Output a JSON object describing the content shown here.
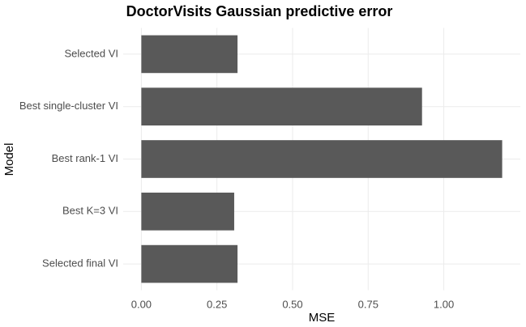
{
  "chart_data": {
    "type": "bar",
    "orientation": "horizontal",
    "title": "DoctorVisits Gaussian predictive error",
    "x_label": "MSE",
    "y_label": "Model",
    "categories": [
      "Selected VI",
      "Best single-cluster VI",
      "Best rank-1 VI",
      "Best K=3 VI",
      "Selected final VI"
    ],
    "values": [
      0.318,
      0.928,
      1.193,
      0.307,
      0.318
    ],
    "color": "#595959",
    "xlim": [
      -0.06,
      1.253
    ],
    "xticks": [
      {
        "value": 0,
        "label": "0.00"
      },
      {
        "value": 0.25,
        "label": "0.25"
      },
      {
        "value": 0.5,
        "label": "0.50"
      },
      {
        "value": 0.75,
        "label": "0.75"
      },
      {
        "value": 1,
        "label": "1.00"
      }
    ],
    "grid": true
  }
}
